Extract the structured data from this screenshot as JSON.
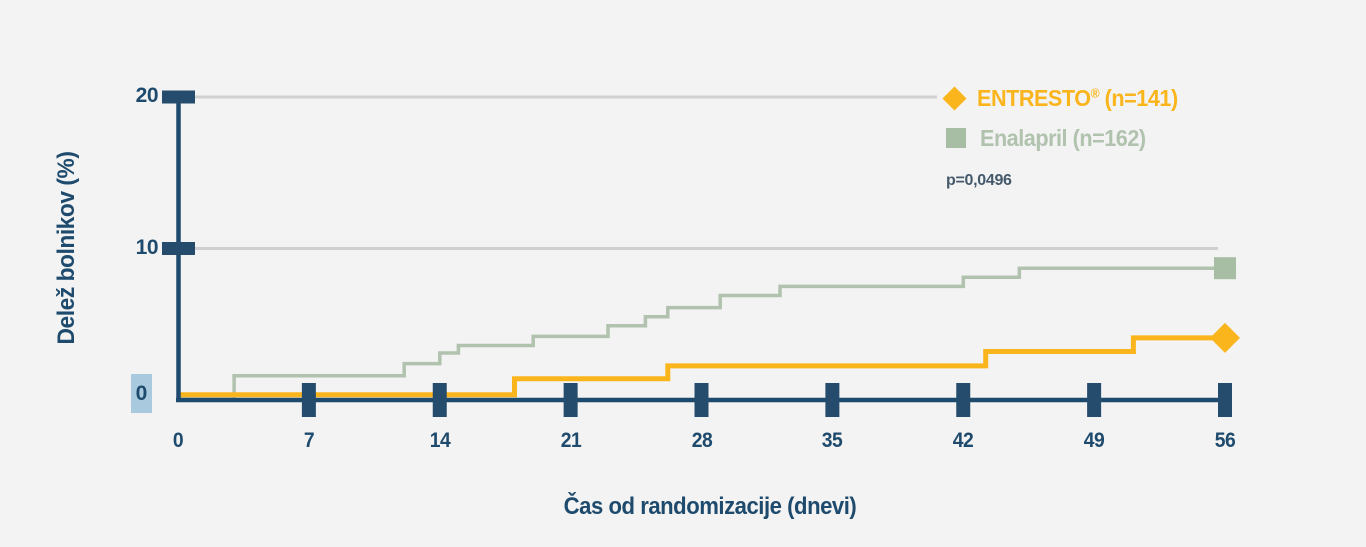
{
  "background_color": "#f2f3f2",
  "colors": {
    "navy": "#1e4a6d",
    "tick_navy": "#254c6d",
    "orange": "#fbb51c",
    "sage_line": "#b1c3ae",
    "sage_marker": "#a7bea5",
    "sage_text": "#b1c3ae",
    "gridline": "#d0d0d0",
    "p_text": "#46596c",
    "zero_highlight": "#a9cade"
  },
  "legend": {
    "entresto": {
      "brand": "ENTRESTO",
      "reg_mark": "®",
      "suffix": " (n=141)"
    },
    "enalapril": {
      "label": "Enalapril (n=162)"
    },
    "p_value": "p=0,0496"
  },
  "chart_data": {
    "type": "line",
    "subtype": "kaplan-meier-step",
    "title": "",
    "xlabel": "Čas od randomizacije (dnevi)",
    "ylabel": "Delež bolnikov (%)",
    "xlim": [
      0,
      56
    ],
    "ylim": [
      0,
      20
    ],
    "x_ticks": [
      0,
      7,
      14,
      21,
      28,
      35,
      42,
      49,
      56
    ],
    "y_ticks": [
      0,
      10,
      20
    ],
    "grid": "horizontal gridlines at y=10 and y=20 only",
    "legend_position": "top-right",
    "p_value": "p=0,0496",
    "series": [
      {
        "name": "ENTRESTO® (n=141)",
        "n": 141,
        "color": "#fbb51c",
        "marker": "diamond",
        "points": [
          [
            0,
            0.35
          ],
          [
            18,
            0.35
          ],
          [
            18,
            1.4
          ],
          [
            26.2,
            1.4
          ],
          [
            26.2,
            2.25
          ],
          [
            43.2,
            2.25
          ],
          [
            43.2,
            3.2
          ],
          [
            51.1,
            3.2
          ],
          [
            51.1,
            4.1
          ],
          [
            56,
            4.1
          ]
        ],
        "end_value_pct": 4.1
      },
      {
        "name": "Enalapril (n=162)",
        "n": 162,
        "color": "#b1c3ae",
        "marker": "square",
        "points": [
          [
            0,
            0.05
          ],
          [
            3,
            0.05
          ],
          [
            3,
            1.6
          ],
          [
            12.1,
            1.6
          ],
          [
            12.1,
            2.4
          ],
          [
            14,
            2.4
          ],
          [
            14,
            3.1
          ],
          [
            15,
            3.1
          ],
          [
            15,
            3.6
          ],
          [
            19,
            3.6
          ],
          [
            19,
            4.2
          ],
          [
            23,
            4.2
          ],
          [
            23,
            4.9
          ],
          [
            25,
            4.9
          ],
          [
            25,
            5.5
          ],
          [
            26.2,
            5.5
          ],
          [
            26.2,
            6.1
          ],
          [
            29,
            6.1
          ],
          [
            29,
            6.9
          ],
          [
            32.2,
            6.9
          ],
          [
            32.2,
            7.5
          ],
          [
            42,
            7.5
          ],
          [
            42,
            8.1
          ],
          [
            45,
            8.1
          ],
          [
            45,
            8.7
          ],
          [
            56,
            8.7
          ]
        ],
        "end_value_pct": 8.7
      }
    ]
  }
}
